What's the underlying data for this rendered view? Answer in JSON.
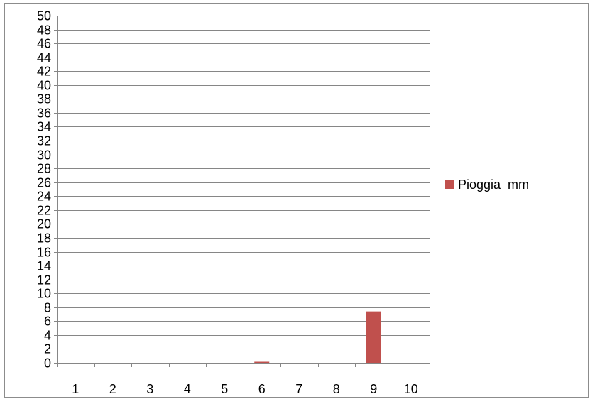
{
  "chart_data": {
    "type": "bar",
    "categories": [
      "1",
      "2",
      "3",
      "4",
      "5",
      "6",
      "7",
      "8",
      "9",
      "10"
    ],
    "series": [
      {
        "name": "Pioggia  mm",
        "color": "#c0504d",
        "values": [
          0,
          0,
          0,
          0,
          0,
          0.15,
          0,
          0,
          7.4,
          0
        ]
      }
    ],
    "title": "",
    "xlabel": "",
    "ylabel": "",
    "ylim": [
      0,
      50
    ],
    "ytick_step": 2,
    "grid": true,
    "legend_position": "right"
  }
}
